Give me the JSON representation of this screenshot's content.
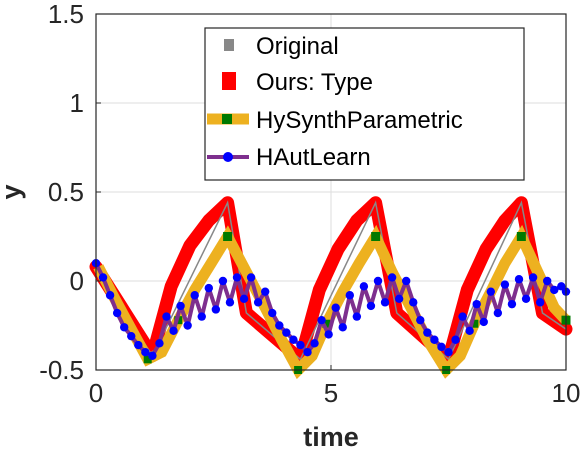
{
  "chart_data": {
    "type": "line",
    "xlabel": "time",
    "ylabel": "y",
    "xlim": [
      0,
      10
    ],
    "ylim": [
      -0.5,
      1.5
    ],
    "xticks": [
      0,
      5,
      10
    ],
    "xtick_labels": [
      "0",
      "5",
      "10"
    ],
    "yticks": [
      -0.5,
      0,
      0.5,
      1,
      1.5
    ],
    "ytick_labels": [
      "-0.5",
      "0",
      "0.5",
      "1",
      "1.5"
    ],
    "grid": true,
    "legend_position": "top-right",
    "series": [
      {
        "name": "Original",
        "color": "#888888",
        "style": "thin-line",
        "x": [
          0,
          1.2,
          2.8,
          3.2,
          4.35,
          5.95,
          6.4,
          7.5,
          9.05,
          9.5,
          10
        ],
        "y": [
          0.08,
          -0.42,
          0.44,
          -0.18,
          -0.44,
          0.44,
          -0.18,
          -0.44,
          0.44,
          -0.18,
          -0.27
        ]
      },
      {
        "name": "Ours: Type",
        "color": "#ff0000",
        "style": "thick-curve",
        "x": [
          0,
          1.2,
          1.6,
          2.0,
          2.4,
          2.8,
          3.2,
          4.35,
          4.75,
          5.15,
          5.55,
          5.95,
          6.4,
          7.5,
          7.9,
          8.3,
          8.7,
          9.05,
          9.5,
          10
        ],
        "y": [
          0.08,
          -0.42,
          -0.03,
          0.2,
          0.34,
          0.44,
          -0.18,
          -0.44,
          -0.05,
          0.18,
          0.34,
          0.44,
          -0.18,
          -0.44,
          -0.05,
          0.18,
          0.34,
          0.44,
          -0.18,
          -0.27
        ]
      },
      {
        "name": "HySynthParametric",
        "color": "#edb120",
        "marker_color": "#007a00",
        "style": "thick-line-square-markers",
        "x": [
          0.05,
          0.4,
          0.75,
          1.1,
          1.4,
          1.75,
          2.1,
          2.45,
          2.8,
          3.2,
          3.6,
          3.95,
          4.3,
          4.6,
          4.9,
          5.25,
          5.6,
          5.95,
          6.3,
          6.7,
          7.05,
          7.45,
          7.75,
          8.05,
          8.4,
          8.7,
          9.05,
          9.4,
          9.75,
          10
        ],
        "y": [
          0.08,
          -0.1,
          -0.27,
          -0.44,
          -0.4,
          -0.22,
          -0.05,
          0.1,
          0.25,
          0.05,
          -0.15,
          -0.33,
          -0.5,
          -0.42,
          -0.24,
          -0.06,
          0.1,
          0.25,
          0.05,
          -0.15,
          -0.33,
          -0.5,
          -0.42,
          -0.24,
          -0.06,
          0.1,
          0.25,
          0.05,
          -0.15,
          -0.22
        ]
      },
      {
        "name": "HAutLearn",
        "color": "#7e2f8e",
        "marker_color": "#0000ff",
        "style": "line-dot-markers",
        "x": [
          0,
          0.15,
          0.3,
          0.45,
          0.6,
          0.75,
          0.9,
          1.05,
          1.2,
          1.35,
          1.5,
          1.65,
          1.8,
          1.95,
          2.1,
          2.25,
          2.4,
          2.55,
          2.7,
          2.85,
          3.0,
          3.15,
          3.3,
          3.45,
          3.6,
          3.75,
          3.9,
          4.05,
          4.2,
          4.35,
          4.5,
          4.65,
          4.8,
          4.95,
          5.1,
          5.25,
          5.4,
          5.55,
          5.7,
          5.85,
          6.0,
          6.15,
          6.3,
          6.45,
          6.6,
          6.75,
          6.9,
          7.05,
          7.2,
          7.35,
          7.5,
          7.65,
          7.8,
          7.95,
          8.1,
          8.25,
          8.4,
          8.55,
          8.7,
          8.85,
          9.0,
          9.15,
          9.3,
          9.45,
          9.6,
          9.75,
          9.9,
          10
        ],
        "y": [
          0.1,
          0.02,
          -0.08,
          -0.18,
          -0.26,
          -0.31,
          -0.36,
          -0.4,
          -0.42,
          -0.35,
          -0.2,
          -0.28,
          -0.14,
          -0.25,
          -0.08,
          -0.2,
          -0.04,
          -0.16,
          0.0,
          -0.12,
          0.02,
          -0.1,
          0.02,
          -0.12,
          -0.06,
          -0.18,
          -0.25,
          -0.29,
          -0.33,
          -0.36,
          -0.4,
          -0.35,
          -0.22,
          -0.3,
          -0.15,
          -0.26,
          -0.08,
          -0.2,
          -0.03,
          -0.14,
          0.0,
          -0.12,
          0.02,
          -0.1,
          0.0,
          -0.12,
          -0.22,
          -0.29,
          -0.33,
          -0.37,
          -0.4,
          -0.33,
          -0.2,
          -0.28,
          -0.13,
          -0.23,
          -0.06,
          -0.18,
          -0.02,
          -0.13,
          0.01,
          -0.1,
          0.02,
          -0.12,
          0.0,
          -0.05,
          -0.03,
          -0.06
        ]
      }
    ]
  }
}
